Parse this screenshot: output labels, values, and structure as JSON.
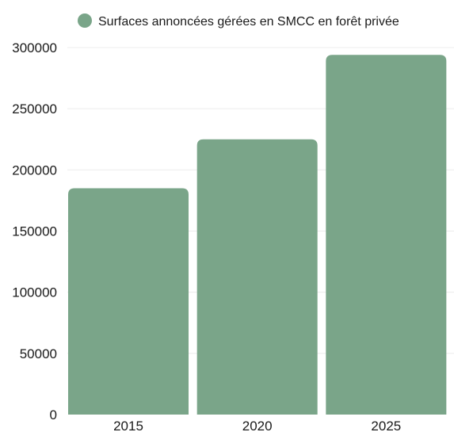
{
  "chart_data": {
    "type": "bar",
    "categories": [
      "2015",
      "2020",
      "2025"
    ],
    "series": [
      {
        "name": "Surfaces annoncées gérées en SMCC en forêt privée",
        "values": [
          185000,
          225000,
          294000
        ],
        "color": "#7aa589"
      }
    ],
    "title": "",
    "xlabel": "",
    "ylabel": "",
    "ylim": [
      0,
      300000
    ],
    "yticks": [
      0,
      50000,
      100000,
      150000,
      200000,
      250000,
      300000
    ],
    "grid": true,
    "legend": "top"
  }
}
